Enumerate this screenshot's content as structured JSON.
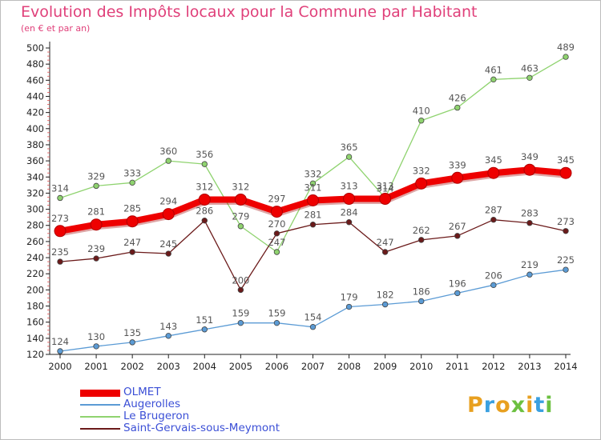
{
  "title": "Evolution des Impôts locaux pour la Commune par Habitant",
  "subtitle": "(en € et par an)",
  "logo": {
    "text": "Proxiti",
    "colors": [
      "#e8a020",
      "#3aa0e0",
      "#e8a020",
      "#6cc040",
      "#e8a020",
      "#3aa0e0",
      "#6cc040"
    ]
  },
  "chart_data": {
    "type": "line",
    "x": [
      "2000",
      "2001",
      "2002",
      "2003",
      "2004",
      "2005",
      "2006",
      "2007",
      "2008",
      "2009",
      "2010",
      "2011",
      "2012",
      "2013",
      "2014"
    ],
    "yticks": [
      120,
      140,
      160,
      180,
      200,
      220,
      240,
      260,
      280,
      300,
      320,
      340,
      360,
      380,
      400,
      420,
      440,
      460,
      480,
      500
    ],
    "ylim": [
      120,
      505
    ],
    "grid": false,
    "legend_position": "bottom-left",
    "series": [
      {
        "name": "OLMET",
        "color": "#ee0000",
        "values": [
          273,
          281,
          285,
          294,
          312,
          312,
          297,
          311,
          313,
          313,
          332,
          339,
          345,
          349,
          345
        ]
      },
      {
        "name": "Augerolles",
        "color": "#5b9bd5",
        "values": [
          124,
          130,
          135,
          143,
          151,
          159,
          159,
          154,
          179,
          182,
          186,
          196,
          206,
          219,
          225
        ]
      },
      {
        "name": "Le Brugeron",
        "color": "#8fd36f",
        "values": [
          314,
          329,
          333,
          360,
          356,
          279,
          247,
          332,
          365,
          314,
          410,
          426,
          461,
          463,
          489
        ]
      },
      {
        "name": "Saint-Gervais-sous-Meymont",
        "color": "#6b1a1a",
        "values": [
          235,
          239,
          247,
          245,
          286,
          200,
          270,
          281,
          284,
          247,
          262,
          267,
          287,
          283,
          273
        ]
      }
    ]
  }
}
